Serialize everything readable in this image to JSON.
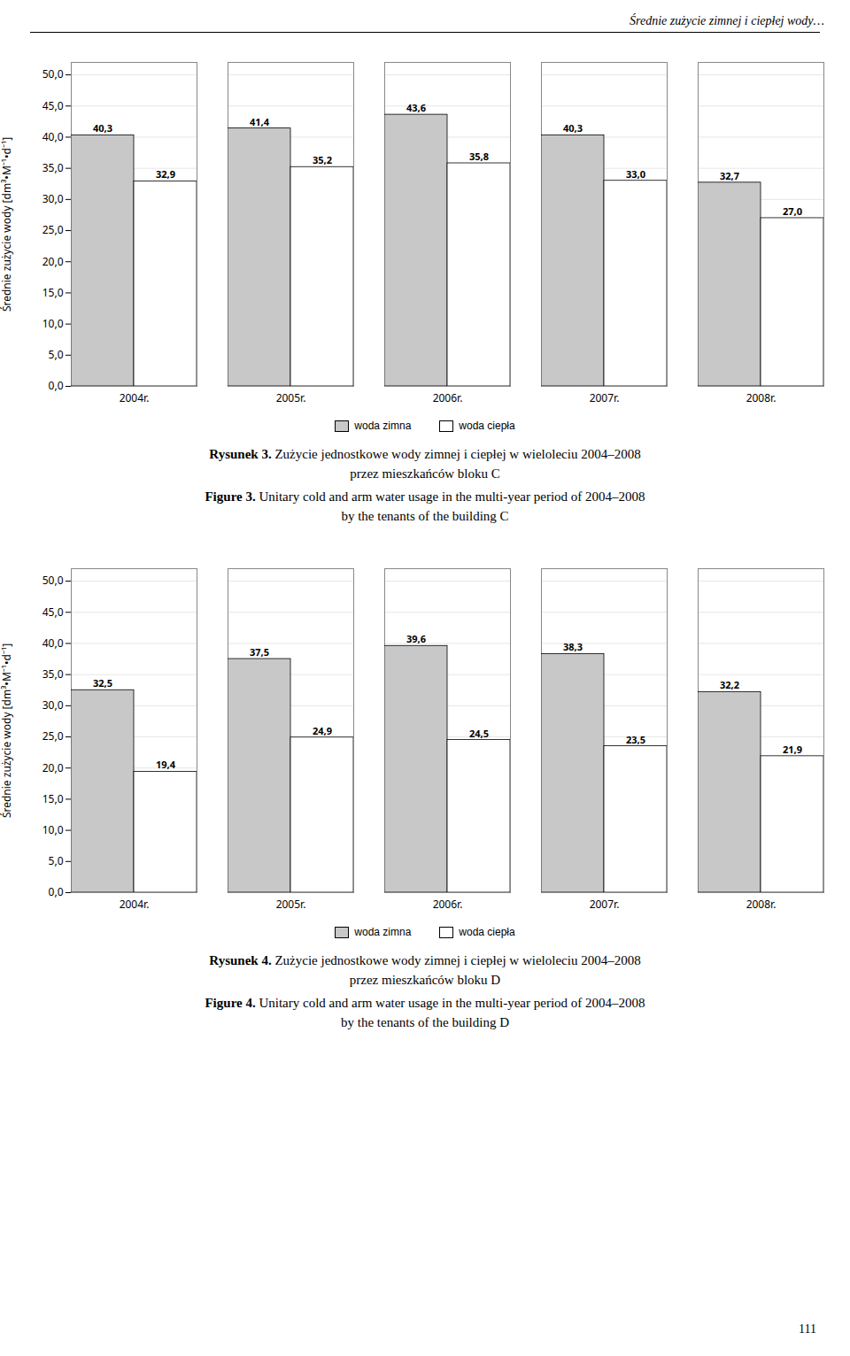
{
  "annotations": [
    "Średnie zużycie zimnej i ciepłej wody…",
    "111"
  ],
  "chart_data": [
    {
      "type": "bar",
      "categories": [
        "2004r.",
        "2005r.",
        "2006r.",
        "2007r.",
        "2008r."
      ],
      "series": [
        {
          "name": "woda zimna",
          "color": "#c8c8c8",
          "values": [
            40.3,
            41.4,
            43.6,
            40.3,
            32.7
          ],
          "value_labels": [
            "40,3",
            "41,4",
            "43,6",
            "40,3",
            "32,7"
          ]
        },
        {
          "name": "woda ciepła",
          "color": "#ffffff",
          "values": [
            32.9,
            35.2,
            35.8,
            33.0,
            27.0
          ],
          "value_labels": [
            "32,9",
            "35,2",
            "35,8",
            "33,0",
            "27,0"
          ]
        }
      ],
      "ylabel": "Średnie zużycie wody [dm³•M⁻¹•d⁻¹]",
      "ylim": [
        0,
        52
      ],
      "yticks": [
        {
          "value": 0,
          "label": "0,0"
        },
        {
          "value": 5,
          "label": "5,0"
        },
        {
          "value": 10,
          "label": "10,0"
        },
        {
          "value": 15,
          "label": "15,0"
        },
        {
          "value": 20,
          "label": "20,0"
        },
        {
          "value": 25,
          "label": "25,0"
        },
        {
          "value": 30,
          "label": "30,0"
        },
        {
          "value": 35,
          "label": "35,0"
        },
        {
          "value": 40,
          "label": "40,0"
        },
        {
          "value": 45,
          "label": "45,0"
        },
        {
          "value": 50,
          "label": "50,0"
        }
      ],
      "grid": true,
      "legend": "bottom",
      "data_labels": true,
      "annotations": [
        "Rysunek 3. Zużycie jednostkowe wody zimnej i ciepłej w wieloleciu 2004–2008",
        "przez mieszkańców bloku C",
        "Figure 3. Unitary cold and arm water usage in the multi-year period of 2004–2008",
        "by the tenants of the building C"
      ]
    },
    {
      "type": "bar",
      "categories": [
        "2004r.",
        "2005r.",
        "2006r.",
        "2007r.",
        "2008r."
      ],
      "series": [
        {
          "name": "woda zimna",
          "color": "#c8c8c8",
          "values": [
            32.5,
            37.5,
            39.6,
            38.3,
            32.2
          ],
          "value_labels": [
            "32,5",
            "37,5",
            "39,6",
            "38,3",
            "32,2"
          ]
        },
        {
          "name": "woda ciepła",
          "color": "#ffffff",
          "values": [
            19.4,
            24.9,
            24.5,
            23.5,
            21.9
          ],
          "value_labels": [
            "19,4",
            "24,9",
            "24,5",
            "23,5",
            "21,9"
          ]
        }
      ],
      "ylabel": "Średnie zużycie wody [dm³•M⁻¹•d⁻¹]",
      "ylim": [
        0,
        52
      ],
      "yticks": [
        {
          "value": 0,
          "label": "0,0"
        },
        {
          "value": 5,
          "label": "5,0"
        },
        {
          "value": 10,
          "label": "10,0"
        },
        {
          "value": 15,
          "label": "15,0"
        },
        {
          "value": 20,
          "label": "20,0"
        },
        {
          "value": 25,
          "label": "25,0"
        },
        {
          "value": 30,
          "label": "30,0"
        },
        {
          "value": 35,
          "label": "35,0"
        },
        {
          "value": 40,
          "label": "40,0"
        },
        {
          "value": 45,
          "label": "45,0"
        },
        {
          "value": 50,
          "label": "50,0"
        }
      ],
      "grid": true,
      "legend": "bottom",
      "data_labels": true,
      "annotations": [
        "Rysunek 4. Zużycie jednostkowe wody zimnej i ciepłej w wieloleciu 2004–2008",
        "przez mieszkańców bloku D",
        "Figure 4. Unitary cold and arm water usage in the multi-year period of 2004–2008",
        "by the tenants of the building D"
      ]
    }
  ]
}
